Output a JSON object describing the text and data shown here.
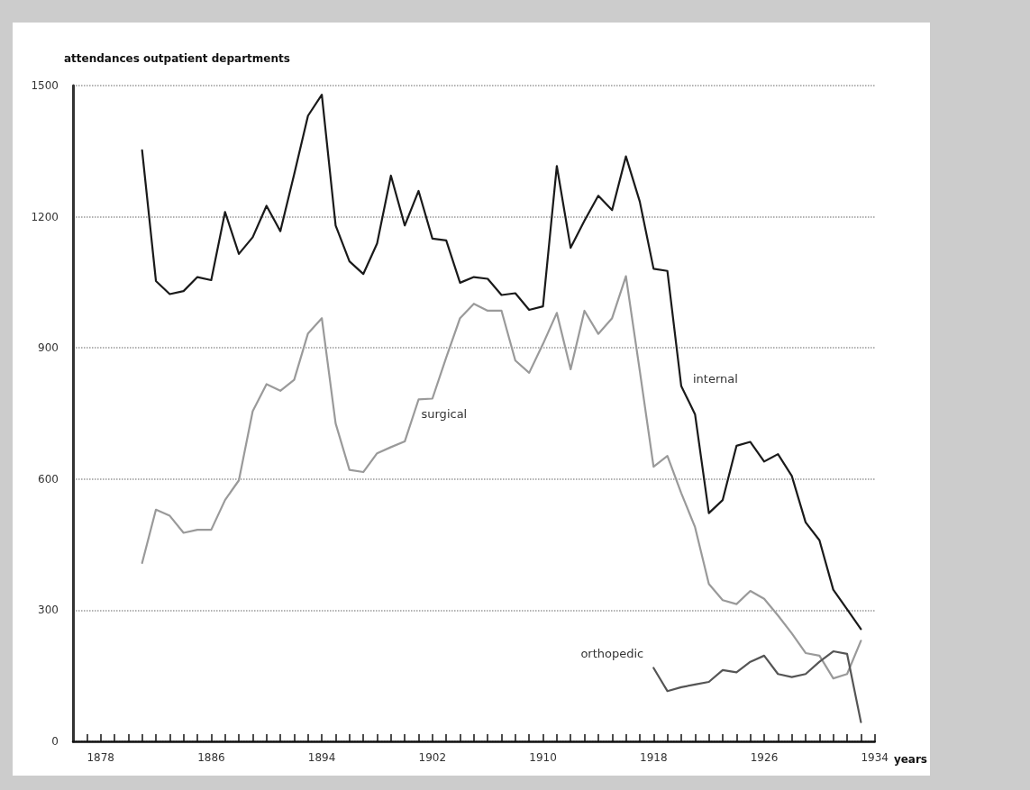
{
  "chart_data": {
    "type": "line",
    "ylabel": "attendances outpatient departments",
    "xlabel": "years",
    "x": [
      1881,
      1882,
      1883,
      1884,
      1885,
      1886,
      1887,
      1888,
      1889,
      1890,
      1891,
      1892,
      1893,
      1894,
      1895,
      1896,
      1897,
      1898,
      1899,
      1900,
      1901,
      1902,
      1903,
      1904,
      1905,
      1906,
      1907,
      1908,
      1909,
      1910,
      1911,
      1912,
      1913,
      1914,
      1915,
      1916,
      1917,
      1918,
      1919,
      1920,
      1921,
      1922,
      1923,
      1924,
      1925,
      1926,
      1927,
      1928,
      1929,
      1930,
      1931,
      1932,
      1933
    ],
    "series": [
      {
        "name": "internal",
        "color": "#1a1a1a",
        "values": [
          1352,
          1053,
          1023,
          1030,
          1062,
          1055,
          1211,
          1115,
          1153,
          1225,
          1167,
          1297,
          1431,
          1479,
          1180,
          1098,
          1069,
          1139,
          1294,
          1180,
          1259,
          1150,
          1146,
          1049,
          1062,
          1058,
          1021,
          1025,
          987,
          995,
          1316,
          1129,
          1191,
          1248,
          1215,
          1338,
          1235,
          1081,
          1076,
          813,
          748,
          522,
          552,
          676,
          685,
          640,
          657,
          607,
          501,
          460,
          347,
          302,
          257
        ]
      },
      {
        "name": "surgical",
        "color": "#9a9a9a",
        "values": [
          408,
          530,
          516,
          477,
          484,
          484,
          552,
          597,
          755,
          817,
          802,
          827,
          933,
          968,
          727,
          621,
          616,
          659,
          673,
          686,
          782,
          784,
          878,
          968,
          1001,
          985,
          985,
          871,
          843,
          909,
          980,
          851,
          985,
          932,
          968,
          1064,
          848,
          628,
          653,
          568,
          490,
          360,
          323,
          314,
          344,
          326,
          288,
          247,
          202,
          196,
          144,
          154,
          230
        ]
      },
      {
        "name": "orthopedic",
        "color": "#555555",
        "values": [
          null,
          null,
          null,
          null,
          null,
          null,
          null,
          null,
          null,
          null,
          null,
          null,
          null,
          null,
          null,
          null,
          null,
          null,
          null,
          null,
          null,
          null,
          null,
          null,
          null,
          null,
          null,
          null,
          null,
          null,
          null,
          null,
          null,
          null,
          null,
          null,
          null,
          168,
          115,
          124,
          130,
          136,
          163,
          158,
          182,
          196,
          154,
          147,
          154,
          182,
          206,
          200,
          44
        ]
      }
    ],
    "xlim": [
      1876,
      1934
    ],
    "xticks": [
      {
        "value": 1877,
        "label": null
      },
      1878,
      {
        "value": 1879,
        "label": null
      },
      {
        "value": 1880,
        "label": null
      },
      {
        "value": 1881,
        "label": null
      },
      {
        "value": 1882,
        "label": null
      },
      {
        "value": 1883,
        "label": null
      },
      {
        "value": 1884,
        "label": null
      },
      {
        "value": 1885,
        "label": null
      },
      1886,
      {
        "value": 1887,
        "label": null
      },
      {
        "value": 1888,
        "label": null
      },
      {
        "value": 1889,
        "label": null
      },
      {
        "value": 1890,
        "label": null
      },
      {
        "value": 1891,
        "label": null
      },
      {
        "value": 1892,
        "label": null
      },
      {
        "value": 1893,
        "label": null
      },
      1894,
      {
        "value": 1895,
        "label": null
      },
      {
        "value": 1896,
        "label": null
      },
      {
        "value": 1897,
        "label": null
      },
      {
        "value": 1898,
        "label": null
      },
      {
        "value": 1899,
        "label": null
      },
      {
        "value": 1900,
        "label": null
      },
      {
        "value": 1901,
        "label": null
      },
      1902,
      {
        "value": 1903,
        "label": null
      },
      {
        "value": 1904,
        "label": null
      },
      {
        "value": 1905,
        "label": null
      },
      {
        "value": 1906,
        "label": null
      },
      {
        "value": 1907,
        "label": null
      },
      {
        "value": 1908,
        "label": null
      },
      {
        "value": 1909,
        "label": null
      },
      1910,
      {
        "value": 1911,
        "label": null
      },
      {
        "value": 1912,
        "label": null
      },
      {
        "value": 1913,
        "label": null
      },
      {
        "value": 1914,
        "label": null
      },
      {
        "value": 1915,
        "label": null
      },
      {
        "value": 1916,
        "label": null
      },
      {
        "value": 1917,
        "label": null
      },
      1918,
      {
        "value": 1919,
        "label": null
      },
      {
        "value": 1920,
        "label": null
      },
      {
        "value": 1921,
        "label": null
      },
      {
        "value": 1922,
        "label": null
      },
      {
        "value": 1923,
        "label": null
      },
      {
        "value": 1924,
        "label": null
      },
      {
        "value": 1925,
        "label": null
      },
      1926,
      {
        "value": 1927,
        "label": null
      },
      {
        "value": 1928,
        "label": null
      },
      {
        "value": 1929,
        "label": null
      },
      {
        "value": 1930,
        "label": null
      },
      {
        "value": 1931,
        "label": null
      },
      {
        "value": 1932,
        "label": null
      },
      {
        "value": 1933,
        "label": null
      },
      1934
    ],
    "ylim": [
      0,
      1500
    ],
    "yticks": [
      0,
      300,
      600,
      900,
      1200,
      1500
    ],
    "grid": "y",
    "line_style": "solid"
  }
}
